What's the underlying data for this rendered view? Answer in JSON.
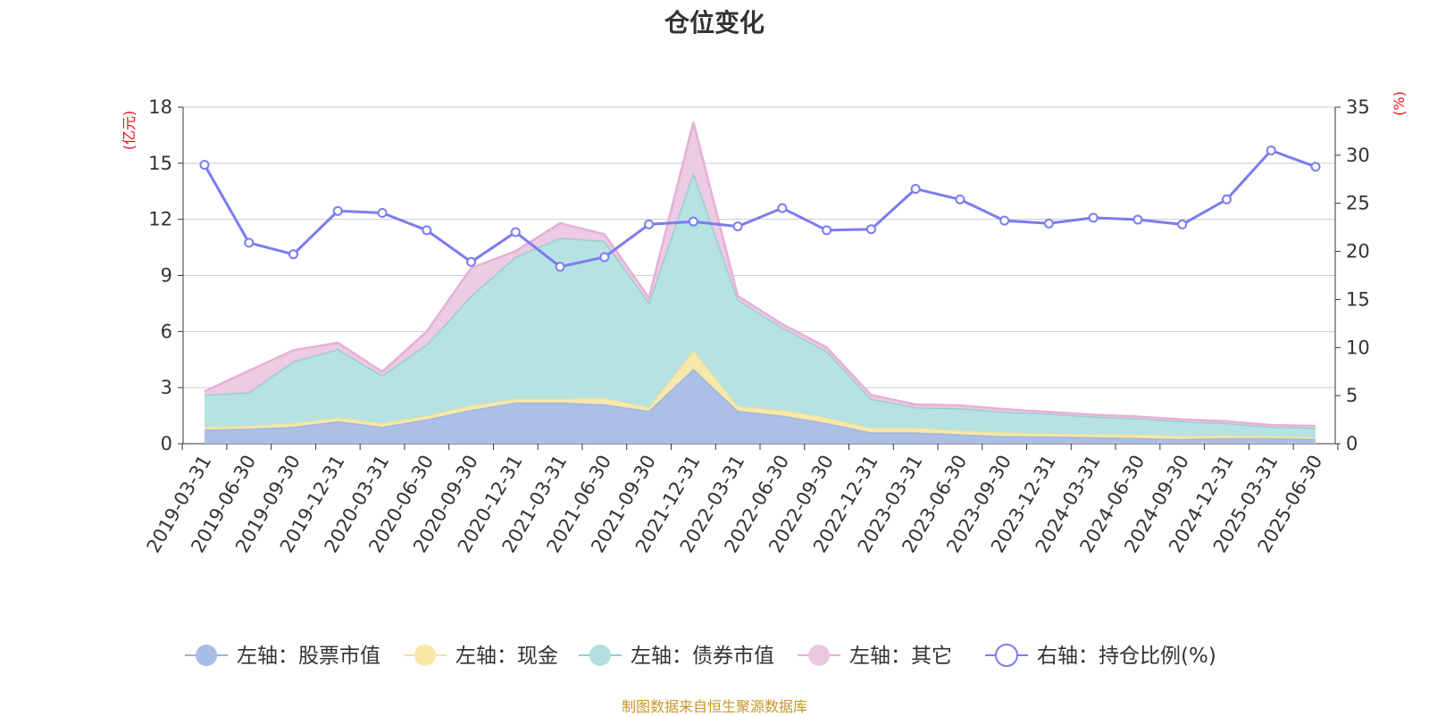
{
  "title": "仓位变化",
  "source": "制图数据来自恒生聚源数据库",
  "colors": {
    "stock": "#a8bde6",
    "stock_line": "#9bb4e0",
    "cash": "#f7e8a6",
    "cash_line": "#f3e09a",
    "bond": "#b3e0e0",
    "bond_line": "#8fcfd3",
    "other": "#ecc8e0",
    "other_line": "#e6b0d6",
    "ratio": "#7b7cf0",
    "axis_unit": "#ee1111",
    "grid": "#cccccc",
    "axis": "#333333"
  },
  "chart_data": {
    "type": "area",
    "title": "仓位变化",
    "left_axis_unit": "(亿元)",
    "right_axis_unit": "(%)",
    "ylim_left": [
      0,
      18
    ],
    "yticks_left": [
      "0",
      "3",
      "6",
      "9",
      "12",
      "15",
      "18"
    ],
    "ylim_right": [
      0,
      35
    ],
    "yticks_right": [
      "0",
      "5",
      "10",
      "15",
      "20",
      "25",
      "30",
      "35"
    ],
    "grid": true,
    "legend_position": "bottom",
    "categories": [
      "2019-03-31",
      "2019-06-30",
      "2019-09-30",
      "2019-12-31",
      "2020-03-31",
      "2020-06-30",
      "2020-09-30",
      "2020-12-31",
      "2021-03-31",
      "2021-06-30",
      "2021-09-30",
      "2021-12-31",
      "2022-03-31",
      "2022-06-30",
      "2022-09-30",
      "2022-12-31",
      "2023-03-31",
      "2023-06-30",
      "2023-09-30",
      "2023-12-31",
      "2024-03-31",
      "2024-06-30",
      "2024-09-30",
      "2024-12-31",
      "2025-03-31",
      "2025-06-30"
    ],
    "series": [
      {
        "name": "左轴：股票市值",
        "axis": "left",
        "stack": true,
        "values": [
          0.75,
          0.8,
          0.9,
          1.2,
          0.9,
          1.3,
          1.8,
          2.2,
          2.2,
          2.1,
          1.75,
          4.0,
          1.75,
          1.5,
          1.1,
          0.6,
          0.6,
          0.5,
          0.4,
          0.38,
          0.35,
          0.3,
          0.25,
          0.3,
          0.3,
          0.25
        ]
      },
      {
        "name": "左轴：现金",
        "axis": "left",
        "stack": true,
        "values": [
          0.15,
          0.15,
          0.2,
          0.2,
          0.2,
          0.2,
          0.25,
          0.2,
          0.2,
          0.35,
          0.2,
          1.0,
          0.25,
          0.3,
          0.3,
          0.25,
          0.25,
          0.2,
          0.2,
          0.17,
          0.15,
          0.2,
          0.15,
          0.15,
          0.1,
          0.1
        ]
      },
      {
        "name": "左轴：债券市值",
        "axis": "left",
        "stack": true,
        "values": [
          1.7,
          1.8,
          3.3,
          3.65,
          2.55,
          3.8,
          5.85,
          7.6,
          8.6,
          8.4,
          5.6,
          9.5,
          5.7,
          4.4,
          3.55,
          1.55,
          1.1,
          1.2,
          1.1,
          1.05,
          0.95,
          0.85,
          0.8,
          0.65,
          0.5,
          0.5
        ]
      },
      {
        "name": "左轴：其它",
        "axis": "left",
        "stack": true,
        "values": [
          0.2,
          1.15,
          0.6,
          0.35,
          0.2,
          0.7,
          1.5,
          0.3,
          0.8,
          0.35,
          0.25,
          2.7,
          0.2,
          0.2,
          0.2,
          0.2,
          0.15,
          0.15,
          0.15,
          0.1,
          0.1,
          0.1,
          0.1,
          0.1,
          0.1,
          0.1
        ]
      },
      {
        "name": "右轴：持仓比例(%)",
        "axis": "right",
        "type": "line",
        "values": [
          29.0,
          20.9,
          19.7,
          24.2,
          24.0,
          22.2,
          18.9,
          22.0,
          18.4,
          19.4,
          22.8,
          23.1,
          22.6,
          24.5,
          22.2,
          22.3,
          26.5,
          25.4,
          23.2,
          22.9,
          23.5,
          23.3,
          22.8,
          25.4,
          30.5,
          28.8
        ]
      }
    ]
  }
}
